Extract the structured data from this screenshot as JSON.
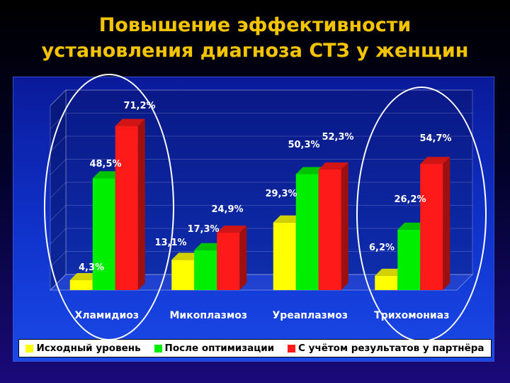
{
  "title": "Повышение эффективности\nустановления диагноза СТЗ у женщин",
  "colors": {
    "series_1": "#ffff00",
    "series_2": "#00ee00",
    "series_3": "#ff1a1a",
    "title": "#f5c400",
    "highlight_ovals": "#ffffff"
  },
  "chart_data": {
    "type": "bar",
    "style": "3d-clustered-column",
    "categories": [
      "Хламидиоз",
      "Микоплазмоз",
      "Уреаплазмоз",
      "Трихомониаз"
    ],
    "series": [
      {
        "name": "Исходный уровень",
        "values": [
          4.3,
          13.1,
          29.3,
          6.2
        ],
        "labels": [
          "4,3%",
          "13,1%",
          "29,3%",
          "6,2%"
        ]
      },
      {
        "name": "После оптимизации",
        "values": [
          48.5,
          17.3,
          50.3,
          26.2
        ],
        "labels": [
          "48,5%",
          "17,3%",
          "50,3%",
          "26,2%"
        ]
      },
      {
        "name": "С учётом результатов у партнёра",
        "values": [
          71.2,
          24.9,
          52.3,
          54.7
        ],
        "labels": [
          "71,2%",
          "24,9%",
          "52,3%",
          "54,7%"
        ]
      }
    ],
    "ylim": [
      0,
      80
    ],
    "grid": true,
    "legend_position": "bottom",
    "highlighted_categories": [
      "Хламидиоз",
      "Трихомониаз"
    ]
  }
}
